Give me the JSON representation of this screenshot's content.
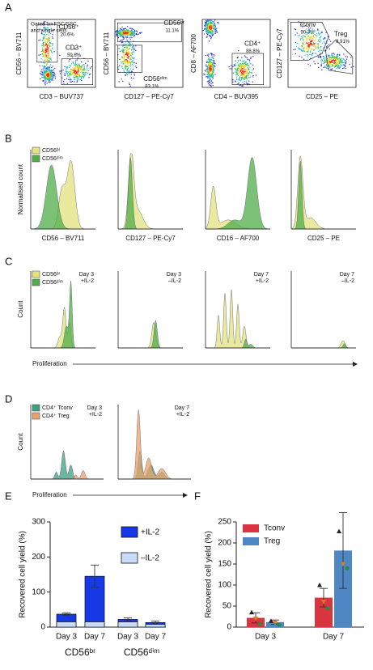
{
  "panel_labels": [
    "A",
    "B",
    "C",
    "D",
    "E",
    "F"
  ],
  "panel_a": {
    "note": [
      "Gated on FSC/SSC",
      "and single cells"
    ],
    "plots": [
      {
        "x_label": "CD3 – BUV737",
        "y_label": "CD56 – BV711",
        "gates": [
          {
            "name": "CD56⁺",
            "percent": "20.6%"
          },
          {
            "name": "CD3⁺",
            "percent": "59.6%"
          }
        ]
      },
      {
        "x_label": "CD127 – PE-Cy7",
        "y_label": "CD56 – BV711",
        "gates": [
          {
            "name": "CD56ᵇʳ",
            "percent": "11.1%"
          },
          {
            "name": "CD56ᵈⁱᵐ",
            "percent": "83.1%"
          }
        ]
      },
      {
        "x_label": "CD4 – BUV395",
        "y_label": "CD8 – AF700",
        "gates": [
          {
            "name": "CD4⁺",
            "percent": "88.8%"
          }
        ]
      },
      {
        "x_label": "CD25 – PE",
        "y_label": "CD127 – PE-Cy7",
        "gates": [
          {
            "name": "Tconv",
            "percent": "90.3%"
          },
          {
            "name": "Treg",
            "percent": "8.91%"
          }
        ]
      }
    ]
  },
  "panel_b": {
    "y_label": "Normalised count",
    "legend": [
      {
        "name": "CD56ᵇʳ",
        "color": "#e1e37c"
      },
      {
        "name": "CD56ᵈⁱᵐ",
        "color": "#4fae48"
      }
    ],
    "x_labels": [
      "CD56 – BV711",
      "CD127 – PE-Cy7",
      "CD16 – AF700",
      "CD25 – PE"
    ]
  },
  "panel_c": {
    "y_label": "Count",
    "x_label": "Proliferation",
    "legend": [
      {
        "name": "CD56ᵇʳ",
        "color": "#e1e37c"
      },
      {
        "name": "CD56ᵈⁱᵐ",
        "color": "#4fae48"
      }
    ],
    "conditions": [
      [
        "Day 3",
        "+IL-2"
      ],
      [
        "Day 3",
        "–IL-2"
      ],
      [
        "Day 7",
        "+IL-2"
      ],
      [
        "Day 7",
        "–IL-2"
      ]
    ]
  },
  "panel_d": {
    "y_label": "Count",
    "x_label": "Proliferation",
    "legend": [
      {
        "name": "CD4⁺ Tconv",
        "color": "#3e9f7e"
      },
      {
        "name": "CD4⁺ Treg",
        "color": "#e8a168"
      }
    ],
    "conditions": [
      [
        "Day 3",
        "+IL-2"
      ],
      [
        "Day 7",
        "+IL-2"
      ]
    ]
  },
  "chart_data": [
    {
      "type": "bar",
      "bar_mode": "overlay",
      "y_label": "Recovered cell yield (%)",
      "categories": [
        "Day 3",
        "Day 7",
        "Day 3",
        "Day 7"
      ],
      "group_labels": [
        "CD56ᵇʳ",
        "CD56ᵈⁱᵐ"
      ],
      "series": [
        {
          "name": "+IL-2",
          "color": "#1638e6",
          "values": [
            37,
            145,
            22,
            13
          ],
          "errors": [
            3,
            32,
            4,
            4
          ]
        },
        {
          "name": "–IL-2",
          "color": "#c9dcf7",
          "values": [
            15,
            15,
            15,
            8
          ]
        }
      ],
      "ylim": [
        0,
        300
      ],
      "yticks": [
        0,
        100,
        200,
        300
      ]
    },
    {
      "type": "grouped_bar",
      "y_label": "Recovered cell yield (%)",
      "categories": [
        "Day 3",
        "Day 7"
      ],
      "series": [
        {
          "name": "Tconv",
          "color": "#d9343f",
          "values": [
            22,
            70
          ],
          "errors": [
            12,
            22
          ],
          "points": [
            [
              35,
              20,
              8
            ],
            [
              100,
              60,
              45
            ]
          ]
        },
        {
          "name": "Treg",
          "color": "#4f86c4",
          "values": [
            12,
            182
          ],
          "errors": [
            5,
            90
          ],
          "points": [
            [
              15,
              10,
              5
            ],
            [
              228,
              150,
              140
            ]
          ]
        }
      ],
      "point_colors": [
        "#222222",
        "#e07b1a",
        "#2a8a3a"
      ],
      "ylim": [
        0,
        250
      ],
      "yticks": [
        0,
        50,
        100,
        150,
        200,
        250
      ]
    }
  ]
}
